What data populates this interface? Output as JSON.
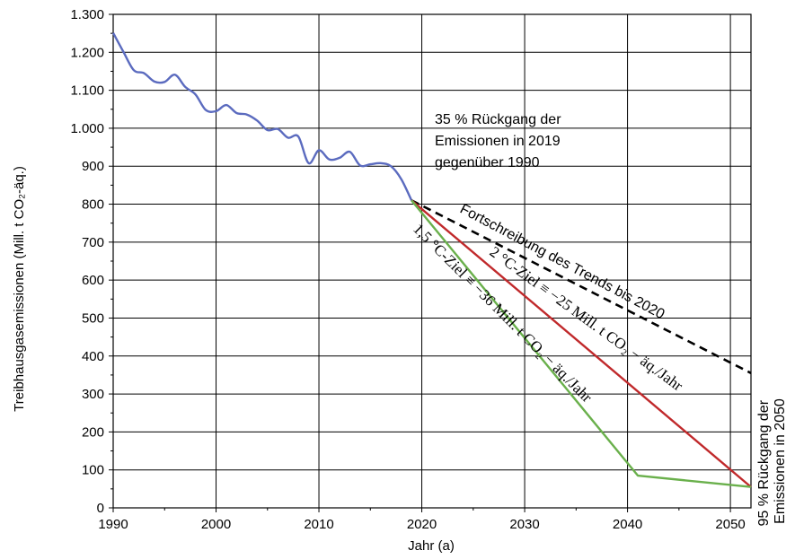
{
  "chart_data": {
    "type": "line",
    "title": "",
    "xlabel": "Jahr (a)",
    "ylabel": "Treibhausgasemissionen (Mill. t CO₂-äq.)",
    "xlim": [
      1990,
      2052
    ],
    "ylim": [
      0,
      1300
    ],
    "x_ticks": [
      1990,
      2000,
      2010,
      2020,
      2030,
      2040,
      2050
    ],
    "x_tick_labels": [
      "1990",
      "2000",
      "2010",
      "2020",
      "2030",
      "2040",
      "2050"
    ],
    "y_ticks": [
      0,
      100,
      200,
      300,
      400,
      500,
      600,
      700,
      800,
      900,
      1000,
      1100,
      1200,
      1300
    ],
    "y_tick_labels": [
      "0",
      "100",
      "200",
      "300",
      "400",
      "500",
      "600",
      "700",
      "800",
      "900",
      "1.000",
      "1.100",
      "1.200",
      "1.300"
    ],
    "grid": true,
    "series": [
      {
        "key": "historical",
        "color": "#5b6bbf",
        "style": "solid",
        "x": [
          1990,
          1991,
          1992,
          1993,
          1994,
          1995,
          1996,
          1997,
          1998,
          1999,
          2000,
          2001,
          2002,
          2003,
          2004,
          2005,
          2006,
          2007,
          2008,
          2009,
          2010,
          2011,
          2012,
          2013,
          2014,
          2015,
          2016,
          2017,
          2018,
          2019
        ],
        "y": [
          1251,
          1201,
          1153,
          1145,
          1123,
          1122,
          1141,
          1109,
          1089,
          1048,
          1045,
          1061,
          1040,
          1036,
          1020,
          995,
          998,
          975,
          978,
          908,
          942,
          918,
          922,
          938,
          902,
          905,
          908,
          900,
          866,
          810
        ]
      },
      {
        "key": "trend",
        "color": "#000000",
        "style": "dashed",
        "x": [
          2019,
          2052
        ],
        "y": [
          810,
          355
        ]
      },
      {
        "key": "two_degree",
        "color": "#c0292b",
        "style": "solid",
        "x": [
          2019,
          2052
        ],
        "y": [
          810,
          55
        ]
      },
      {
        "key": "one_five_degree",
        "color": "#6ab04c",
        "style": "solid",
        "x": [
          2019,
          2041,
          2052
        ],
        "y": [
          810,
          85,
          55
        ]
      }
    ],
    "annotations": {
      "decline_2019": [
        "35 % Rückgang der",
        "Emissionen in 2019",
        "gegenüber 1990"
      ],
      "trend_label": "Fortschreibung des Trends bis 2020",
      "two_degree_label": "2 °C-Ziel ≡ −25 Mill. t CO₂ − äq./Jahr",
      "one_five_label": "1,5 °C-Ziel ≡ −36 Mill. t CO₂ − äq./Jahr",
      "decline_2050": [
        "95 % Rückgang der",
        "Emissionen in 2050"
      ]
    }
  }
}
